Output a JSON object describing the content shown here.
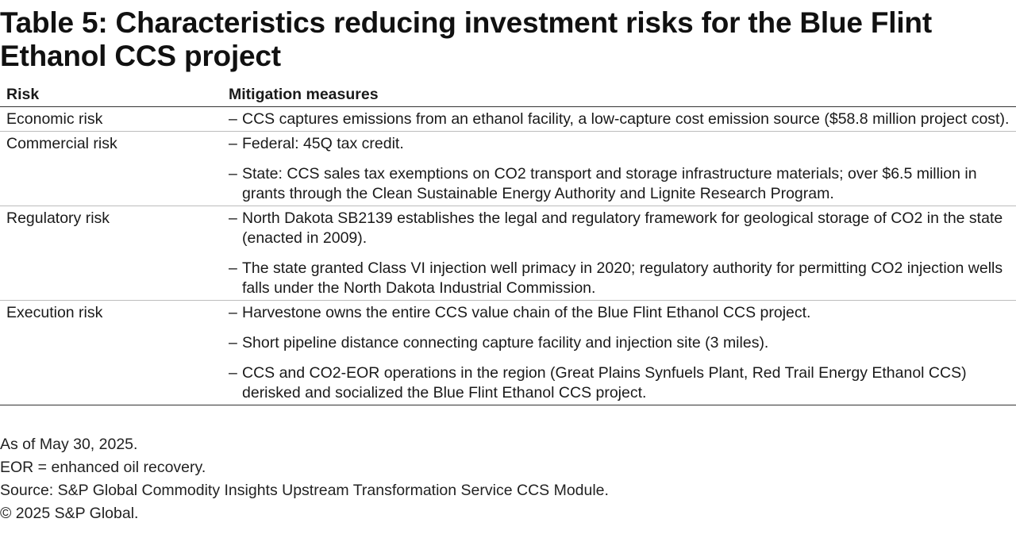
{
  "title": "Table 5:  Characteristics reducing investment risks for the Blue Flint Ethanol CCS project",
  "table": {
    "headers": {
      "risk": "Risk",
      "mitigation": "Mitigation measures"
    },
    "bullet": "–",
    "rows": [
      {
        "risk": "Economic risk",
        "measures": [
          "CCS captures emissions from an ethanol facility, a low-capture cost emission source ($58.8 million project cost)."
        ]
      },
      {
        "risk": "Commercial risk",
        "measures": [
          "Federal: 45Q tax credit.",
          "State: CCS sales tax exemptions on CO2 transport and storage infrastructure materials; over $6.5 million in grants through the Clean Sustainable Energy Authority and Lignite Research Program."
        ]
      },
      {
        "risk": "Regulatory risk",
        "measures": [
          "North Dakota SB2139 establishes the legal and regulatory framework for geological storage of CO2 in the state (enacted in 2009).",
          "The state granted Class VI injection well primacy in 2020; regulatory authority for permitting CO2 injection wells falls under the North Dakota Industrial Commission."
        ]
      },
      {
        "risk": "Execution risk",
        "measures": [
          "Harvestone owns the entire CCS value chain of the Blue Flint Ethanol CCS project.",
          "Short pipeline distance connecting capture facility and injection site (3 miles).",
          "CCS and CO2-EOR operations in the region (Great Plains Synfuels Plant, Red Trail Energy Ethanol CCS) derisked and socialized the Blue Flint Ethanol CCS project."
        ]
      }
    ]
  },
  "notes": {
    "as_of": "As of May 30, 2025.",
    "abbreviation": "EOR = enhanced oil recovery.",
    "source": "Source:  S&P Global Commodity Insights Upstream Transformation Service CCS Module.",
    "copyright": "© 2025 S&P Global."
  }
}
